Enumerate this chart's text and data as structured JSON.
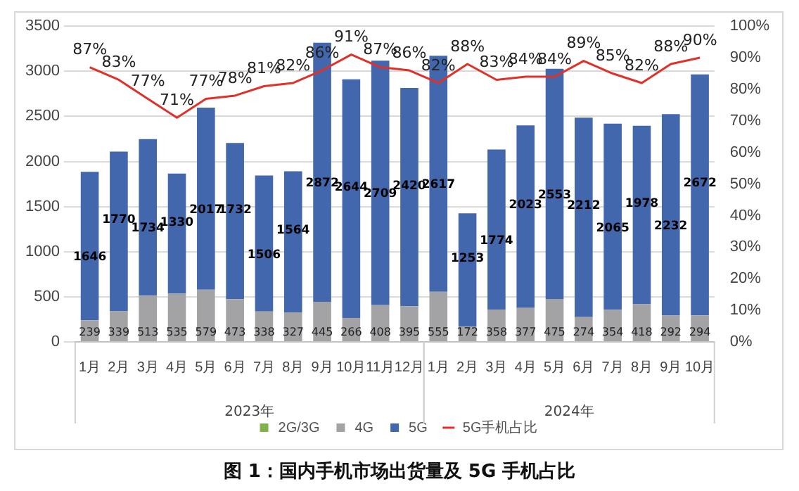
{
  "chart_data": {
    "type": "bar",
    "title": "图 1：国内手机市场出货量及 5G 手机占比",
    "categories": [
      "1月",
      "2月",
      "3月",
      "4月",
      "5月",
      "6月",
      "7月",
      "8月",
      "9月",
      "10月",
      "11月",
      "12月",
      "1月",
      "2月",
      "3月",
      "4月",
      "5月",
      "6月",
      "7月",
      "8月",
      "9月",
      "10月"
    ],
    "annotations": [
      "2023年",
      "2024年"
    ],
    "stacked": true,
    "data_labels": true,
    "grid": "y",
    "legend": "bottom",
    "ylim": [
      0,
      3500
    ],
    "yticks": [
      0,
      500,
      1000,
      1500,
      2000,
      2500,
      3000,
      3500
    ],
    "y2lim": [
      0,
      100
    ],
    "y2ticks": [
      {
        "value": 0,
        "label": "0%"
      },
      {
        "value": 10,
        "label": "10%"
      },
      {
        "value": 20,
        "label": "20%"
      },
      {
        "value": 30,
        "label": "30%"
      },
      {
        "value": 40,
        "label": "40%"
      },
      {
        "value": 50,
        "label": "50%"
      },
      {
        "value": 60,
        "label": "60%"
      },
      {
        "value": 70,
        "label": "70%"
      },
      {
        "value": 80,
        "label": "80%"
      },
      {
        "value": 90,
        "label": "90%"
      },
      {
        "value": 100,
        "label": "100%"
      }
    ],
    "series": [
      {
        "name": "2G/3G",
        "color": "#7fb24a",
        "values": [
          null,
          null,
          null,
          null,
          null,
          null,
          null,
          null,
          null,
          null,
          null,
          null,
          null,
          null,
          null,
          null,
          null,
          null,
          null,
          null,
          null,
          null
        ]
      },
      {
        "name": "4G",
        "color": "#a3a3a6",
        "values": [
          239,
          339,
          513,
          535,
          579,
          473,
          338,
          327,
          445,
          266,
          408,
          395,
          555,
          172,
          358,
          377,
          475,
          274,
          354,
          418,
          292,
          294
        ]
      },
      {
        "name": "5G",
        "color": "#4267ad",
        "values": [
          1646,
          1770,
          1734,
          1330,
          2017,
          1732,
          1506,
          1564,
          2872,
          2644,
          2709,
          2420,
          2617,
          1253,
          1774,
          2023,
          2553,
          2212,
          2065,
          1978,
          2232,
          2672
        ]
      },
      {
        "name": "5G手机占比",
        "type": "line",
        "axis": "y2",
        "color": "#e0302a",
        "values": [
          87,
          83,
          77,
          71,
          77,
          78,
          81,
          82,
          86,
          91,
          87,
          86,
          82,
          88,
          83,
          84,
          84,
          89,
          85,
          82,
          88,
          90
        ],
        "value_labels": [
          "87%",
          "83%",
          "77%",
          "71%",
          "77%",
          "78%",
          "81%",
          "82%",
          "86%",
          "91%",
          "87%",
          "86%",
          "82%",
          "88%",
          "83%",
          "84%",
          "84%",
          "89%",
          "85%",
          "82%",
          "88%",
          "90%"
        ]
      }
    ]
  }
}
